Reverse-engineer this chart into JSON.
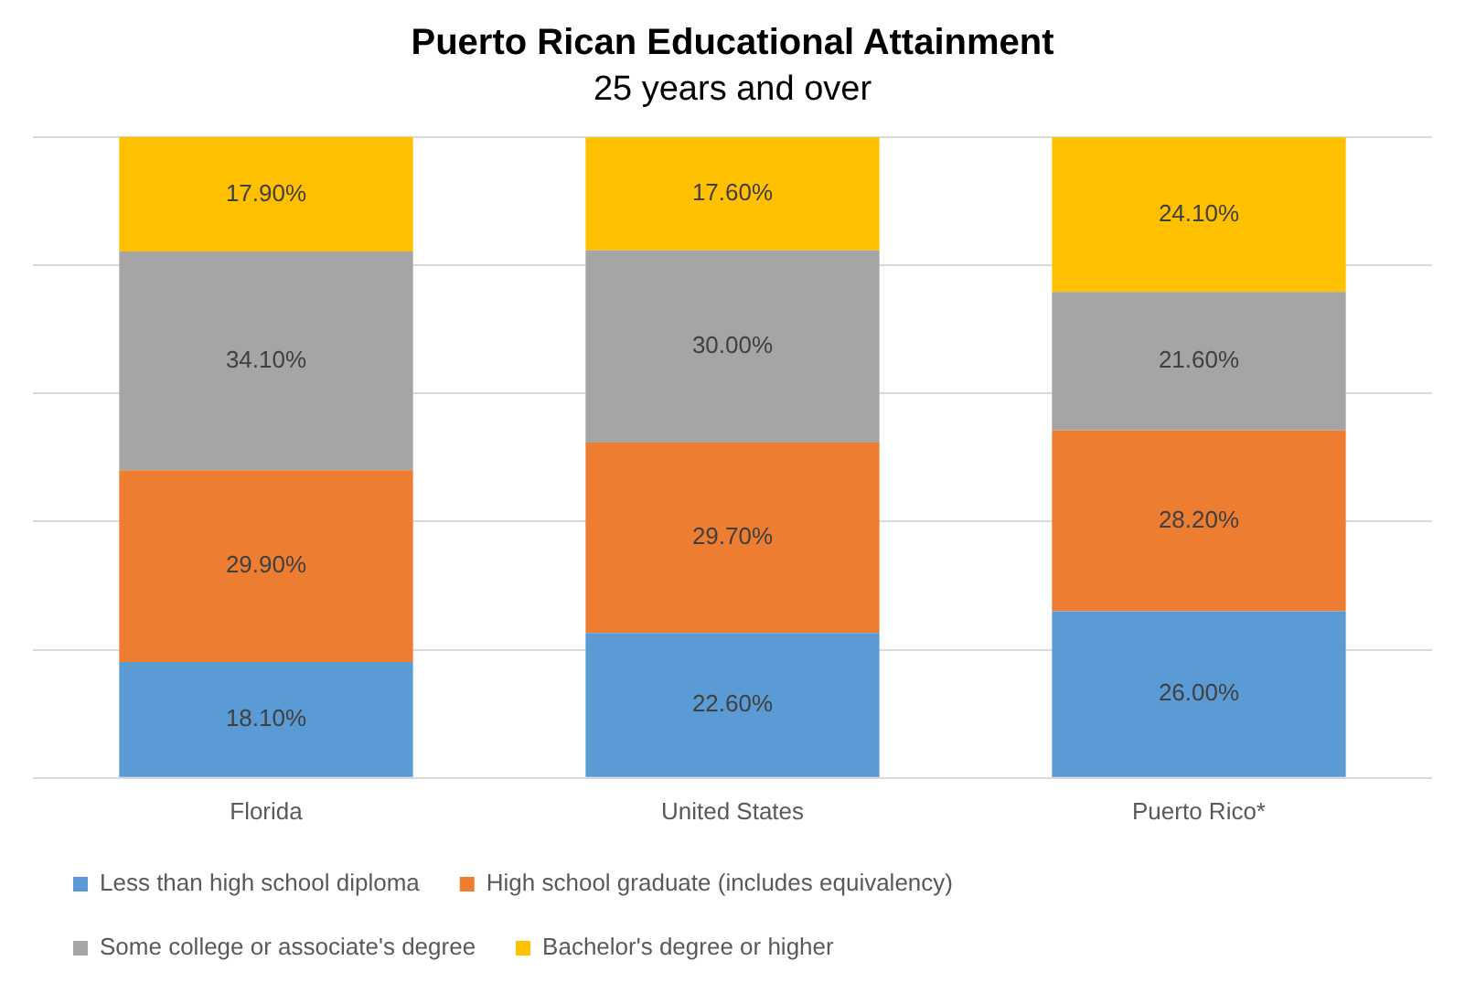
{
  "chart_data": {
    "type": "bar",
    "stacked": true,
    "title": "Puerto Rican Educational Attainment",
    "subtitle": "25 years and over",
    "categories": [
      "Florida",
      "United States",
      "Puerto Rico*"
    ],
    "series": [
      {
        "name": "Less than high school diploma",
        "color": "#5b9bd5",
        "values": [
          18.1,
          22.6,
          26.0
        ],
        "value_labels": [
          "18.10%",
          "22.60%",
          "26.00%"
        ]
      },
      {
        "name": "High school graduate (includes equivalency)",
        "color": "#ed7d31",
        "values": [
          29.9,
          29.7,
          28.2
        ],
        "value_labels": [
          "29.90%",
          "29.70%",
          "28.20%"
        ]
      },
      {
        "name": "Some college or associate's degree",
        "color": "#a5a5a5",
        "values": [
          34.1,
          30.0,
          21.6
        ],
        "value_labels": [
          "34.10%",
          "30.00%",
          "21.60%"
        ]
      },
      {
        "name": "Bachelor's degree or higher",
        "color": "#ffc000",
        "values": [
          17.9,
          17.6,
          24.1
        ],
        "value_labels": [
          "17.90%",
          "17.60%",
          "24.10%"
        ]
      }
    ],
    "ylim": [
      0,
      100
    ],
    "yticks": [
      {
        "value": 0,
        "label": null
      },
      {
        "value": 20,
        "label": null
      },
      {
        "value": 40,
        "label": null
      },
      {
        "value": 60,
        "label": null
      },
      {
        "value": 80,
        "label": null
      },
      {
        "value": 100,
        "label": null
      }
    ],
    "tick_labels": "x",
    "grid": "y",
    "legend": "bottom"
  }
}
